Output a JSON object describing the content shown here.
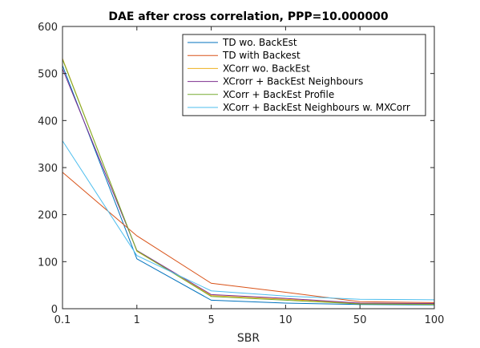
{
  "chart_data": {
    "type": "line",
    "title": "DAE after cross correlation, PPP=10.000000",
    "xlabel": "SBR",
    "ylabel": "",
    "categories": [
      "0.1",
      "1",
      "5",
      "10",
      "50",
      "100"
    ],
    "ylim": [
      0,
      600
    ],
    "yticks": [
      0,
      100,
      200,
      300,
      400,
      500,
      600
    ],
    "grid": false,
    "legend_position": "top-right",
    "series": [
      {
        "name": "TD wo. BackEst",
        "color": "#0072BD",
        "values": [
          517,
          106,
          18,
          12,
          9,
          8
        ]
      },
      {
        "name": "TD with Backest",
        "color": "#D95319",
        "values": [
          290,
          155,
          54,
          35,
          15,
          13
        ]
      },
      {
        "name": "XCorr wo. BackEst",
        "color": "#EDB120",
        "values": [
          532,
          122,
          28,
          20,
          11,
          10
        ]
      },
      {
        "name": "XCrorr + BackEst Neighbours",
        "color": "#7E2F8E",
        "values": [
          510,
          124,
          30,
          22,
          12,
          11
        ]
      },
      {
        "name": "XCorr + BackEst Profile",
        "color": "#77AC30",
        "values": [
          530,
          123,
          26,
          18,
          10,
          9
        ]
      },
      {
        "name": "XCorr + BackEst Neighbours w. MXCorr",
        "color": "#4DBEEE",
        "values": [
          357,
          113,
          38,
          27,
          20,
          19
        ]
      }
    ]
  }
}
